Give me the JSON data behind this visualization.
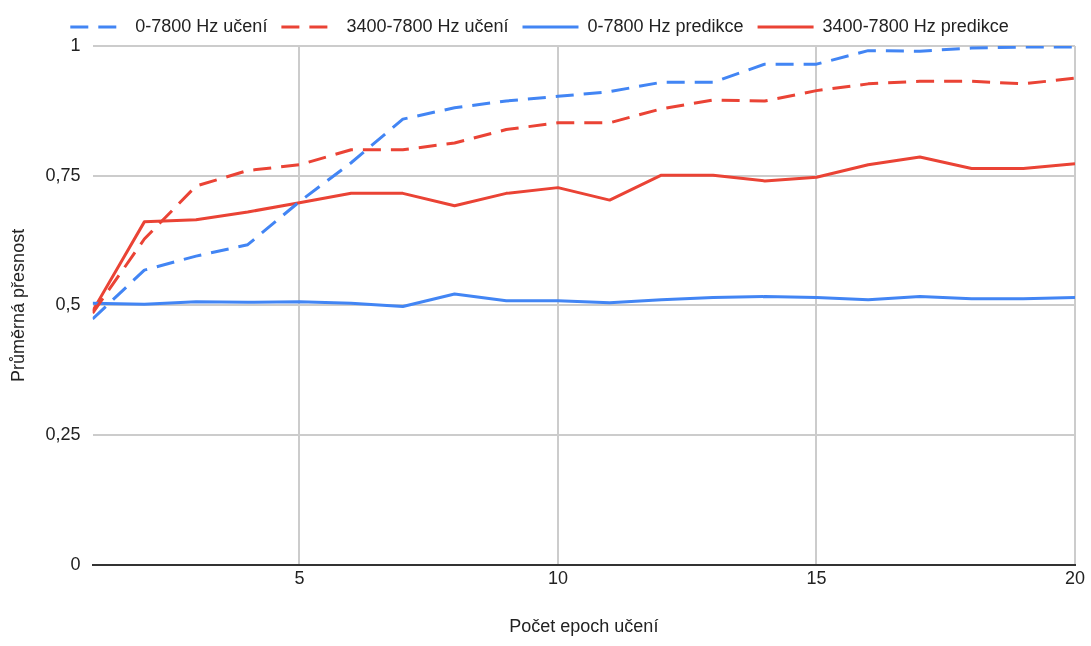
{
  "chart_data": {
    "type": "line",
    "xlabel": "Počet epoch učení",
    "ylabel": "Průměrná přesnost",
    "x": [
      1,
      2,
      3,
      4,
      5,
      6,
      7,
      8,
      9,
      10,
      11,
      12,
      13,
      14,
      15,
      16,
      17,
      18,
      19,
      20
    ],
    "series": [
      {
        "name": "0-7800 Hz učení",
        "color": "#4285f4",
        "line_style": "dashed",
        "values": [
          0.474,
          0.568,
          0.595,
          0.617,
          0.7,
          0.775,
          0.859,
          0.881,
          0.894,
          0.903,
          0.912,
          0.93,
          0.93,
          0.965,
          0.965,
          0.991,
          0.99,
          0.996,
          0.998,
          0.998
        ]
      },
      {
        "name": "3400-7800 Hz učení",
        "color": "#ea4335",
        "line_style": "dashed",
        "values": [
          0.485,
          0.628,
          0.73,
          0.76,
          0.771,
          0.8,
          0.8,
          0.813,
          0.839,
          0.852,
          0.852,
          0.879,
          0.896,
          0.894,
          0.914,
          0.927,
          0.932,
          0.932,
          0.927,
          0.938
        ]
      },
      {
        "name": "0-7800 Hz predikce",
        "color": "#4285f4",
        "line_style": "solid",
        "values": [
          0.504,
          0.502,
          0.507,
          0.506,
          0.507,
          0.504,
          0.498,
          0.522,
          0.509,
          0.509,
          0.505,
          0.511,
          0.515,
          0.517,
          0.515,
          0.511,
          0.517,
          0.513,
          0.513,
          0.515
        ]
      },
      {
        "name": "3400-7800 Hz predikce",
        "color": "#ea4335",
        "line_style": "solid",
        "values": [
          0.489,
          0.661,
          0.665,
          0.68,
          0.698,
          0.716,
          0.716,
          0.692,
          0.716,
          0.727,
          0.703,
          0.751,
          0.751,
          0.74,
          0.747,
          0.771,
          0.786,
          0.764,
          0.764,
          0.773
        ]
      }
    ],
    "xlim": [
      1,
      20
    ],
    "xticks": [
      5,
      10,
      15,
      20
    ],
    "ylim": [
      0,
      1
    ],
    "yticks": [
      0,
      {
        "value": 0.25,
        "label": "0,25"
      },
      {
        "value": 0.5,
        "label": "0,5"
      },
      {
        "value": 0.75,
        "label": "0,75"
      },
      1
    ],
    "grid": true,
    "legend": "top"
  }
}
